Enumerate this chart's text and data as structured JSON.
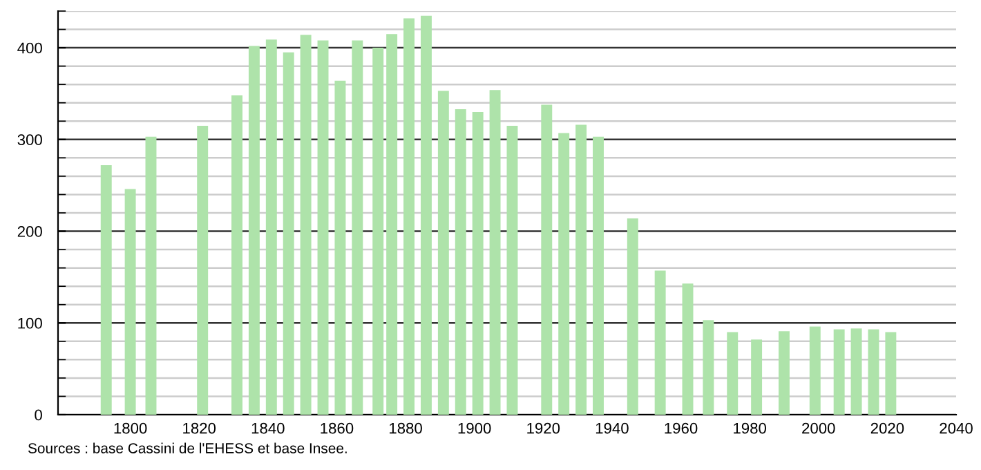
{
  "chart_data": {
    "type": "bar",
    "x": [
      1793,
      1800,
      1806,
      1821,
      1831,
      1836,
      1841,
      1846,
      1851,
      1856,
      1861,
      1866,
      1872,
      1876,
      1881,
      1886,
      1891,
      1896,
      1901,
      1906,
      1911,
      1921,
      1926,
      1931,
      1936,
      1946,
      1954,
      1962,
      1968,
      1975,
      1982,
      1990,
      1999,
      2006,
      2011,
      2016,
      2021
    ],
    "values": [
      272,
      246,
      303,
      315,
      348,
      402,
      409,
      395,
      414,
      408,
      364,
      408,
      400,
      415,
      432,
      435,
      353,
      333,
      330,
      354,
      315,
      338,
      307,
      316,
      303,
      214,
      157,
      143,
      103,
      90,
      82,
      91,
      96,
      93,
      94,
      93,
      90
    ],
    "color": "#aee3aa",
    "xlim": [
      1779,
      2040
    ],
    "xticks": [
      1800,
      1820,
      1840,
      1860,
      1880,
      1900,
      1920,
      1940,
      1960,
      1980,
      2000,
      2020,
      2040
    ],
    "ylim": [
      0,
      440
    ],
    "yticks": [
      0,
      {
        "value": 20,
        "label": null
      },
      {
        "value": 40,
        "label": null
      },
      {
        "value": 60,
        "label": null
      },
      {
        "value": 80,
        "label": null
      },
      100,
      {
        "value": 120,
        "label": null
      },
      {
        "value": 140,
        "label": null
      },
      {
        "value": 160,
        "label": null
      },
      {
        "value": 180,
        "label": null
      },
      200,
      {
        "value": 220,
        "label": null
      },
      {
        "value": 240,
        "label": null
      },
      {
        "value": 260,
        "label": null
      },
      {
        "value": 280,
        "label": null
      },
      300,
      {
        "value": 320,
        "label": null
      },
      {
        "value": 340,
        "label": null
      },
      {
        "value": 360,
        "label": null
      },
      {
        "value": 380,
        "label": null
      },
      400,
      {
        "value": 420,
        "label": null
      },
      {
        "value": 440,
        "label": null
      }
    ],
    "grid": "y",
    "annotations": [
      "Sources : base Cassini de l'EHESS et base Insee."
    ]
  }
}
